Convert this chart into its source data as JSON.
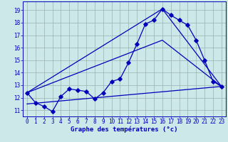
{
  "xlabel": "Graphe des températures (°c)",
  "xlim": [
    -0.5,
    23.5
  ],
  "ylim": [
    10.5,
    19.7
  ],
  "yticks": [
    11,
    12,
    13,
    14,
    15,
    16,
    17,
    18,
    19
  ],
  "xticks": [
    0,
    1,
    2,
    3,
    4,
    5,
    6,
    7,
    8,
    9,
    10,
    11,
    12,
    13,
    14,
    15,
    16,
    17,
    18,
    19,
    20,
    21,
    22,
    23
  ],
  "bg_color": "#cce8e8",
  "grid_color": "#9ab0b0",
  "line_color": "#0000bb",
  "line1_x": [
    0,
    1,
    2,
    3,
    4,
    5,
    6,
    7,
    8,
    9,
    10,
    11,
    12,
    13,
    14,
    15,
    16,
    17,
    18,
    19,
    20,
    21,
    22,
    23
  ],
  "line1_y": [
    12.4,
    11.6,
    11.3,
    10.9,
    12.1,
    12.7,
    12.6,
    12.5,
    11.9,
    12.4,
    13.3,
    13.5,
    14.8,
    16.3,
    17.9,
    18.2,
    19.1,
    18.6,
    18.2,
    17.8,
    16.6,
    15.0,
    13.3,
    12.9
  ],
  "line2_x": [
    0,
    16,
    23
  ],
  "line2_y": [
    12.4,
    19.1,
    12.9
  ],
  "line3_x": [
    0,
    16,
    23
  ],
  "line3_y": [
    12.4,
    16.6,
    12.9
  ],
  "line4_x": [
    0,
    23
  ],
  "line4_y": [
    11.5,
    12.9
  ]
}
